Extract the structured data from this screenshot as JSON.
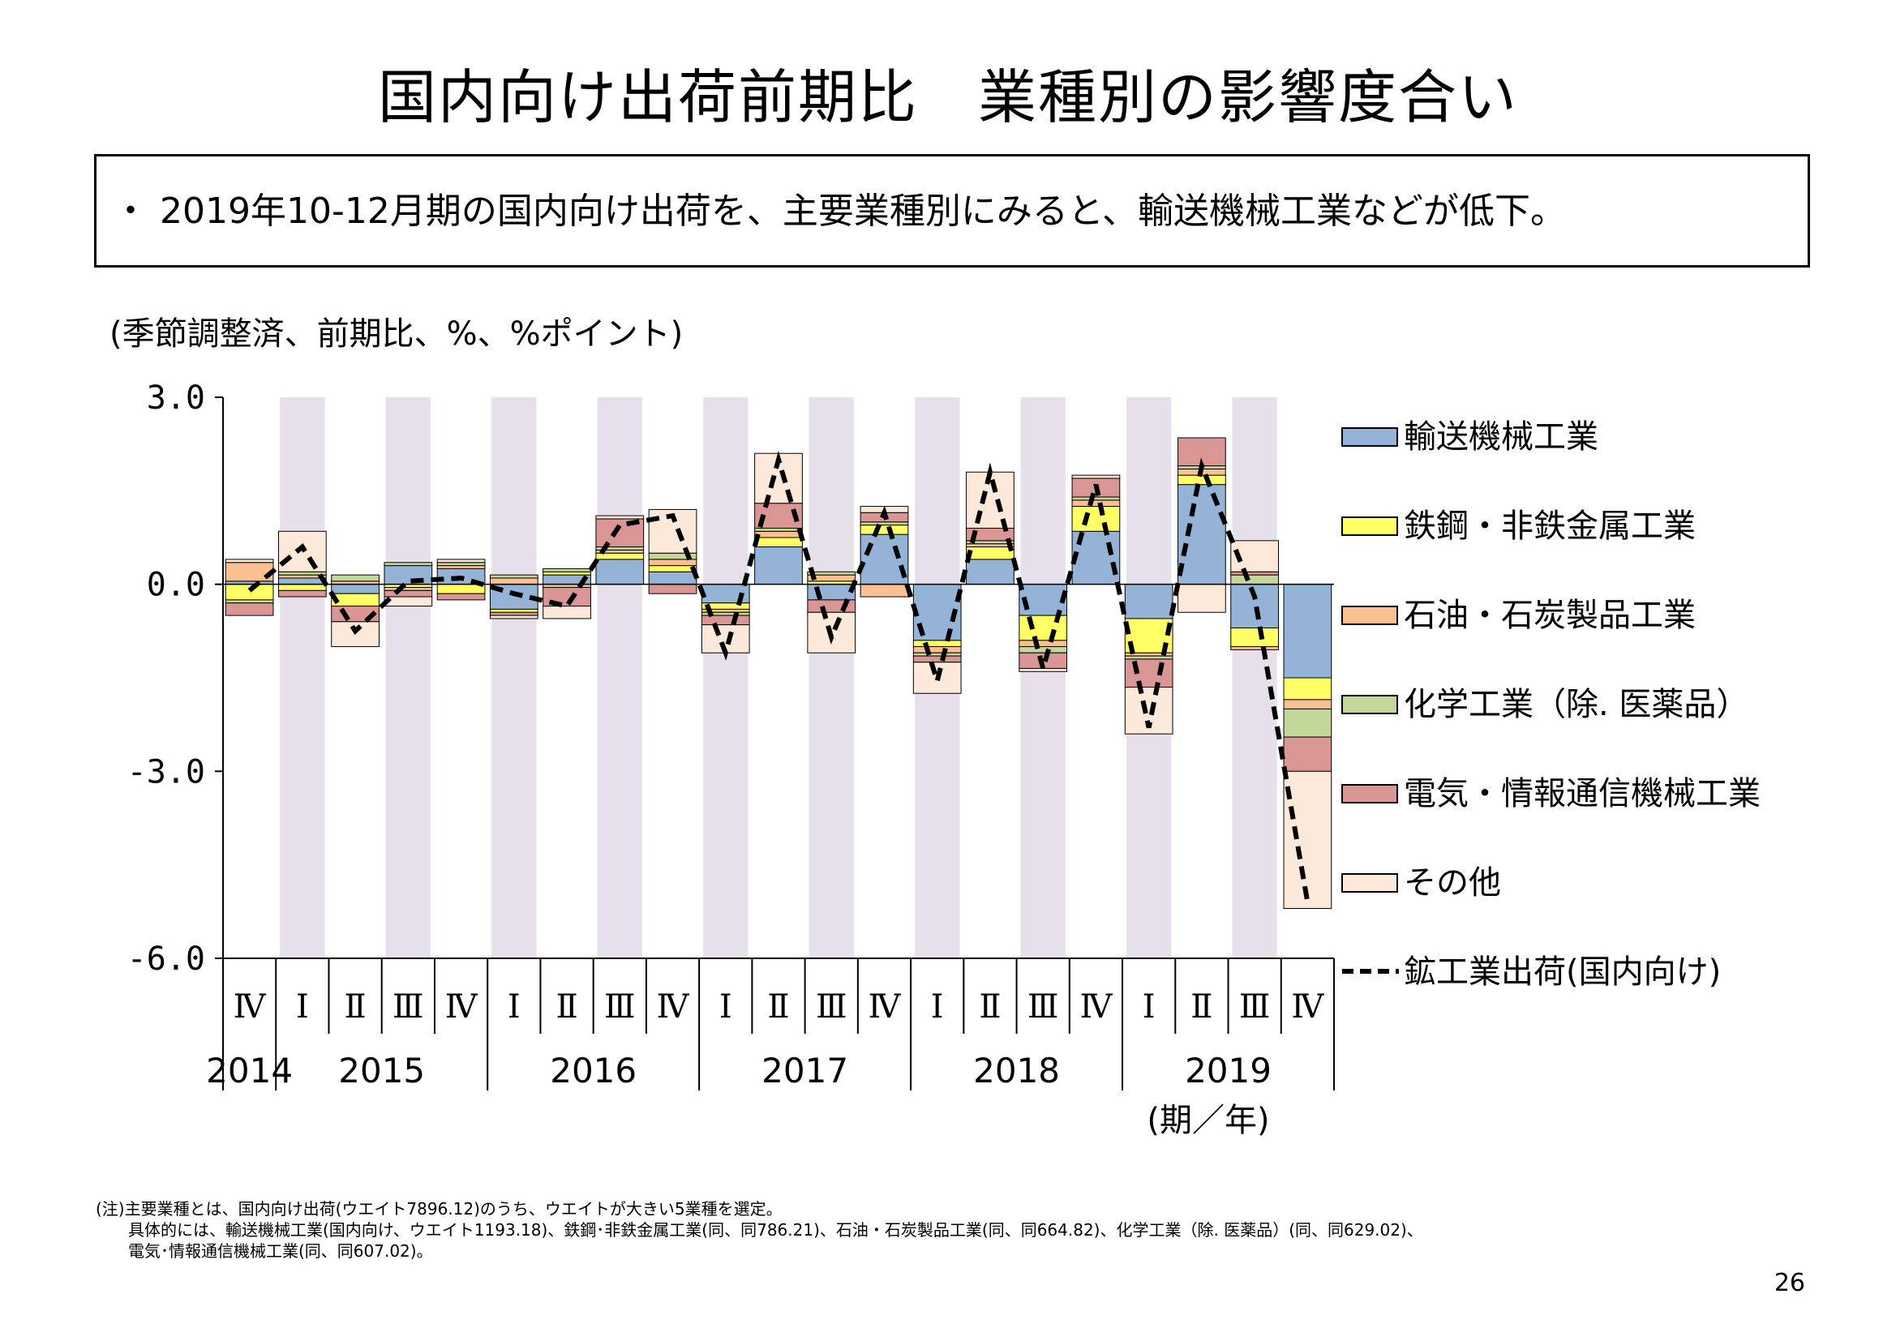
{
  "title": "国内向け出荷前期比　業種別の影響度合い",
  "summary": "・ 2019年10-12月期の国内向け出荷を、主要業種別にみると、輸送機械工業などが低下。",
  "notes": [
    "(注)主要業種とは、国内向け出荷(ウエイト7896.12)のうち、ウエイトが大きい5業種を選定。",
    "　　具体的には、輸送機械工業(国内向け、ウエイト1193.18)、鉄鋼･非鉄金属工業(同、同786.21)、石油・石炭製品工業(同、同664.82)、化学工業（除. 医薬品）(同、同629.02)、",
    "　　電気･情報通信機械工業(同、同607.02)。"
  ],
  "page_number": "26",
  "chart_data": {
    "type": "bar",
    "stacked": true,
    "ylabel": "(季節調整済、前期比、%、%ポイント)",
    "xlabel": "(期／年)",
    "ylim": [
      -6.0,
      3.0
    ],
    "yticks": [
      "3.0",
      "0.0",
      "-3.0",
      "-6.0"
    ],
    "yticks_values": [
      3.0,
      0.0,
      -3.0,
      -6.0
    ],
    "quarters": [
      "Ⅳ",
      "Ⅰ",
      "Ⅱ",
      "Ⅲ",
      "Ⅳ",
      "Ⅰ",
      "Ⅱ",
      "Ⅲ",
      "Ⅳ",
      "Ⅰ",
      "Ⅱ",
      "Ⅲ",
      "Ⅳ",
      "Ⅰ",
      "Ⅱ",
      "Ⅲ",
      "Ⅳ",
      "Ⅰ",
      "Ⅱ",
      "Ⅲ",
      "Ⅳ"
    ],
    "years": [
      {
        "label": "2014",
        "start": 0,
        "span": 1
      },
      {
        "label": "2015",
        "start": 1,
        "span": 4
      },
      {
        "label": "2016",
        "start": 5,
        "span": 4
      },
      {
        "label": "2017",
        "start": 9,
        "span": 4
      },
      {
        "label": "2018",
        "start": 13,
        "span": 4
      },
      {
        "label": "2019",
        "start": 17,
        "span": 4
      }
    ],
    "shaded_quarter": "Ⅰ and Ⅲ",
    "grid": false,
    "legend_position": "right",
    "series": [
      {
        "name": "輸送機械工業",
        "color": "#95b3d7",
        "values": [
          0.05,
          0.1,
          -0.15,
          0.3,
          0.25,
          -0.4,
          0.15,
          0.4,
          0.2,
          -0.3,
          0.6,
          -0.25,
          0.8,
          -0.9,
          0.4,
          -0.5,
          0.85,
          -0.55,
          1.6,
          -0.7,
          -1.5
        ]
      },
      {
        "name": "鉄鋼・非鉄金属工業",
        "color": "#ffff66",
        "values": [
          -0.25,
          -0.1,
          -0.2,
          -0.05,
          -0.15,
          -0.05,
          0.05,
          0.1,
          0.1,
          -0.1,
          0.15,
          0.05,
          0.15,
          -0.1,
          0.2,
          -0.4,
          0.4,
          -0.55,
          0.15,
          -0.3,
          -0.35
        ]
      },
      {
        "name": "石油・石炭製品工業",
        "color": "#fac090",
        "values": [
          0.3,
          0.05,
          0.05,
          -0.05,
          0.05,
          0.1,
          -0.05,
          0.05,
          0.1,
          -0.05,
          0.1,
          0.1,
          -0.2,
          -0.1,
          0.05,
          -0.1,
          0.1,
          -0.05,
          0.1,
          -0.05,
          -0.15
        ]
      },
      {
        "name": "化学工業（除. 医薬品）",
        "color": "#c4d79b",
        "values": [
          -0.05,
          0.05,
          0.1,
          0.05,
          0.05,
          0.05,
          0.05,
          0.05,
          0.1,
          -0.05,
          0.05,
          0.05,
          0.05,
          -0.05,
          0.05,
          -0.1,
          0.05,
          -0.05,
          0.05,
          0.15,
          -0.45
        ]
      },
      {
        "name": "電気・情報通信機械工業",
        "color": "#da9694",
        "values": [
          -0.2,
          -0.1,
          -0.25,
          -0.1,
          -0.1,
          -0.05,
          -0.3,
          0.45,
          -0.15,
          -0.15,
          0.4,
          -0.2,
          0.15,
          -0.1,
          0.2,
          -0.25,
          0.3,
          -0.45,
          0.45,
          0.05,
          -0.55
        ]
      },
      {
        "name": "その他",
        "color": "#fde9d9",
        "values": [
          0.05,
          0.65,
          -0.4,
          -0.15,
          0.05,
          -0.05,
          -0.2,
          0.05,
          0.7,
          -0.45,
          0.8,
          -0.65,
          0.1,
          -0.5,
          0.9,
          -0.05,
          0.05,
          -0.75,
          -0.45,
          0.5,
          -2.2
        ]
      }
    ],
    "line": {
      "name": "鉱工業出荷(国内向け)",
      "values": [
        -0.1,
        0.6,
        -0.75,
        0.05,
        0.1,
        -0.15,
        -0.35,
        0.95,
        1.1,
        -1.1,
        2.0,
        -0.85,
        1.15,
        -1.55,
        1.8,
        -1.35,
        1.6,
        -2.3,
        1.9,
        -0.2,
        -5.1
      ]
    },
    "colors": {
      "shade": "#e6e0ec",
      "line": "#000000",
      "axis": "#000000"
    }
  }
}
